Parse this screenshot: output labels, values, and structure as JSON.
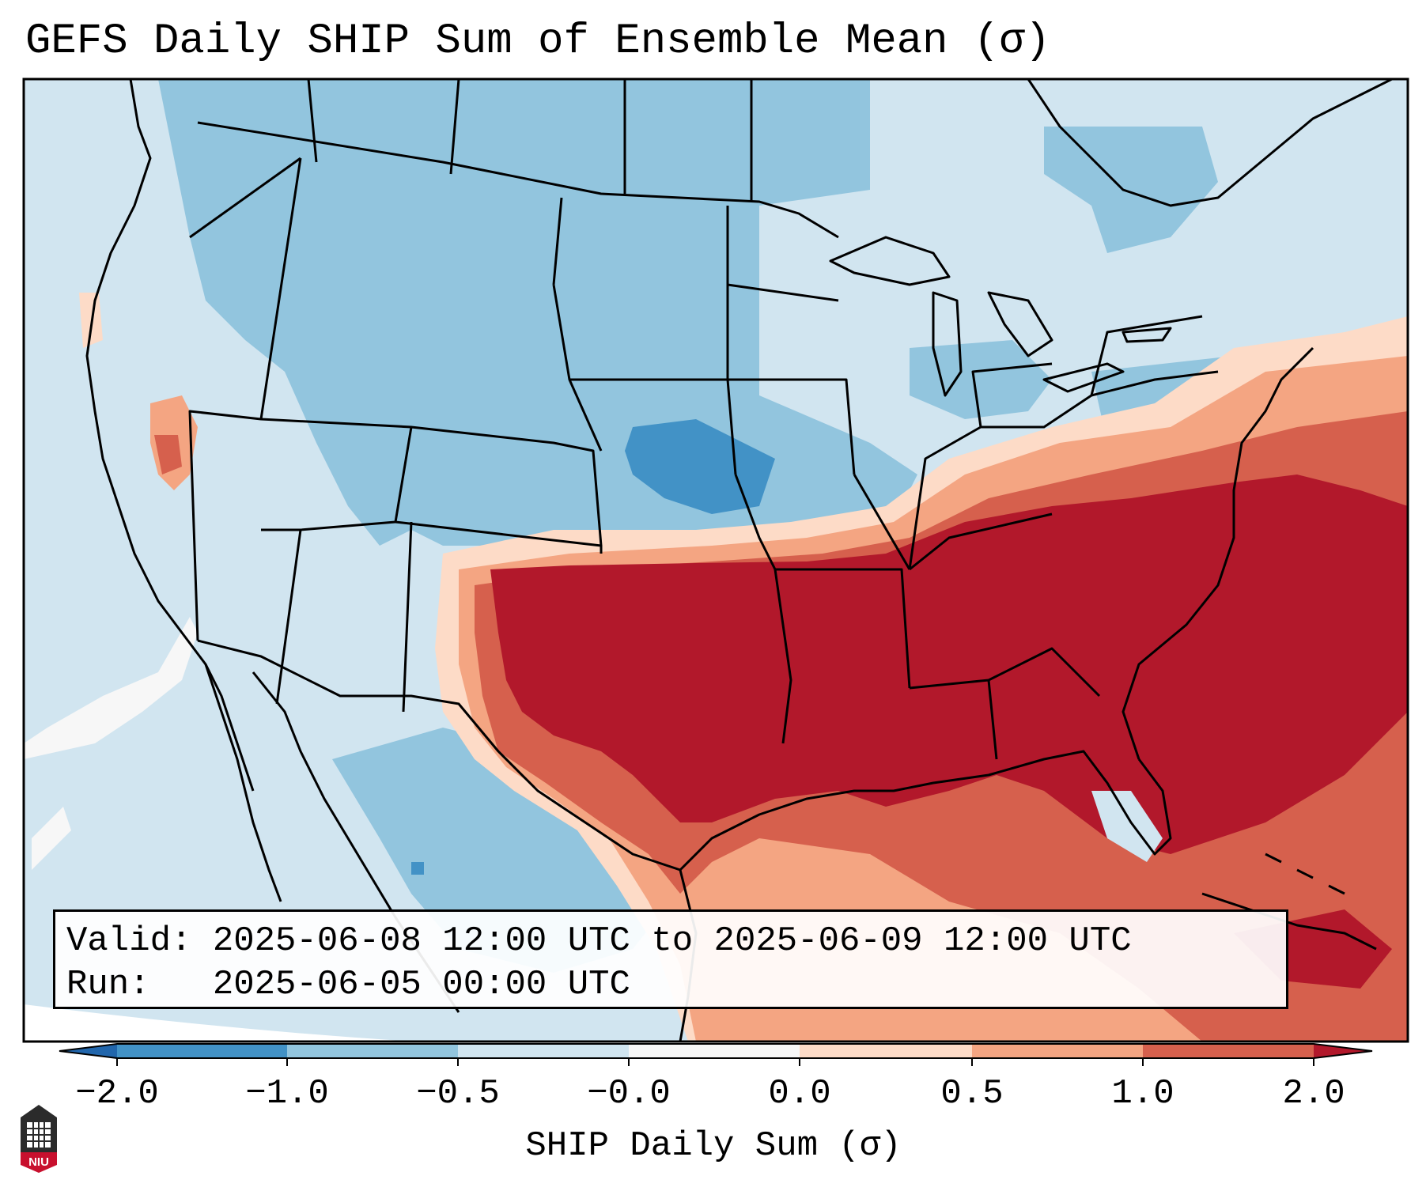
{
  "title": "GEFS Daily SHIP Sum of Ensemble Mean (σ)",
  "info_box": {
    "valid_label": "Valid:",
    "valid_value": "2025-06-08 12:00 UTC to 2025-06-09 12:00 UTC",
    "run_label": "Run:",
    "run_value": "2025-06-05 00:00 UTC"
  },
  "colorbar": {
    "label": "SHIP Daily Sum (σ)",
    "ticks": [
      "−2.0",
      "−1.0",
      "−0.5",
      "−0.0",
      "0.0",
      "0.5",
      "1.0",
      "2.0"
    ],
    "bin_colors": [
      "#4292c6",
      "#92c5de",
      "#d1e5f0",
      "#f7f7f7",
      "#fddbc7",
      "#f4a582",
      "#d6604d",
      "#b2182b"
    ],
    "extend_low_color": "#2166ac",
    "extend_high_color": "#b2182b"
  },
  "map": {
    "ocean_color": "#d1e5f0",
    "outline_color": "#000000"
  },
  "logo": {
    "text": "NIU",
    "color": "#c8102e"
  }
}
